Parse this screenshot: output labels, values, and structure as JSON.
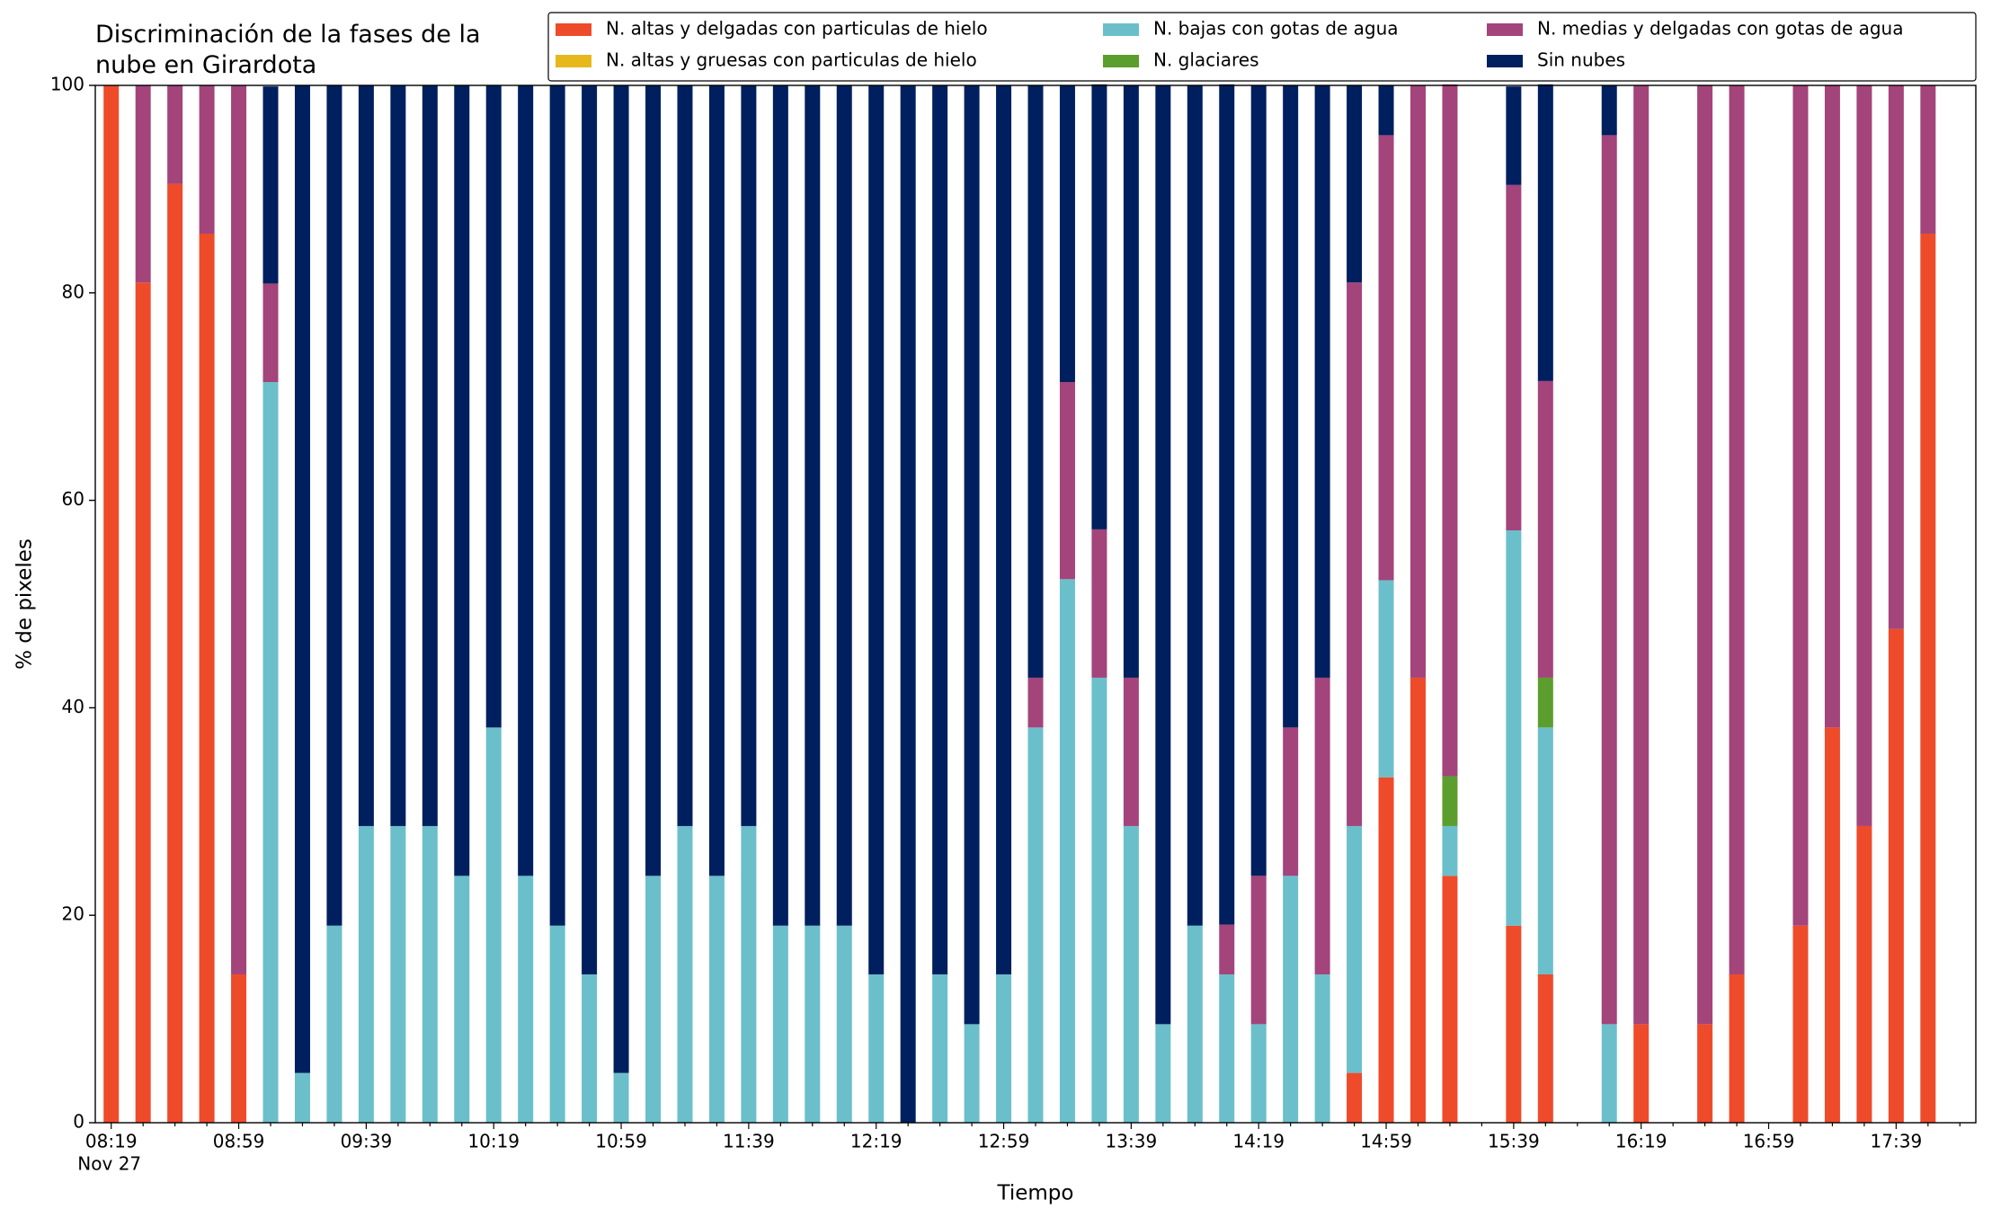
{
  "chart_data": {
    "type": "stacked_bar",
    "title": "Discriminación de la fases de la nube en Girardota",
    "xlabel": "Tiempo",
    "ylabel": "% de pixeles",
    "x_date": "Nov 27",
    "categories": [
      "08:19",
      null,
      null,
      null,
      "08:59",
      null,
      null,
      null,
      "09:39",
      null,
      null,
      null,
      "10:19",
      null,
      null,
      null,
      "10:59",
      null,
      null,
      null,
      "11:39",
      null,
      null,
      null,
      "12:19",
      null,
      null,
      null,
      "12:59",
      null,
      null,
      null,
      "13:39",
      null,
      null,
      null,
      "14:19",
      null,
      null,
      null,
      "14:59",
      null,
      null,
      null,
      "15:39",
      null,
      null,
      null,
      "16:19",
      null,
      null,
      null,
      "16:59",
      null,
      null,
      null,
      "17:39",
      null
    ],
    "ylim": [
      0,
      100
    ],
    "yticks": [
      0,
      20,
      40,
      60,
      80,
      100
    ],
    "legend": "top-right",
    "series": [
      {
        "name": "N. altas y delgadas con particulas de hielo",
        "color": "#ee4b2b",
        "values": [
          100,
          81,
          90.5,
          85.7,
          14.3,
          0,
          0,
          0,
          0,
          0,
          0,
          0,
          0,
          0,
          0,
          0,
          0,
          0,
          0,
          0,
          0,
          0,
          0,
          0,
          0,
          0,
          0,
          0,
          0,
          0,
          0,
          0,
          0,
          0,
          0,
          0,
          0,
          0,
          0,
          4.8,
          33.3,
          42.9,
          23.8,
          null,
          19,
          14.3,
          null,
          0,
          9.5,
          null,
          9.5,
          14.3,
          null,
          19,
          38.1,
          28.6,
          47.6,
          85.7
        ]
      },
      {
        "name": "N. altas y gruesas con particulas de hielo",
        "color": "#e6b81c",
        "values": [
          0,
          0,
          0,
          0,
          0,
          0,
          0,
          0,
          0,
          0,
          0,
          0,
          0,
          0,
          0,
          0,
          0,
          0,
          0,
          0,
          0,
          0,
          0,
          0,
          0,
          0,
          0,
          0,
          0,
          0,
          0,
          0,
          0,
          0,
          0,
          0,
          0,
          0,
          0,
          0,
          0,
          0,
          0,
          null,
          0,
          0,
          null,
          0,
          0,
          null,
          0,
          0,
          null,
          0,
          0,
          0,
          0,
          0
        ]
      },
      {
        "name": "N. bajas con gotas de agua",
        "color": "#6bbfca",
        "values": [
          0,
          0,
          0,
          0,
          0,
          71.4,
          4.8,
          19,
          28.6,
          28.6,
          28.6,
          23.8,
          38.1,
          23.8,
          19,
          14.3,
          4.8,
          23.8,
          28.6,
          23.8,
          28.6,
          19,
          19,
          19,
          14.3,
          0,
          14.3,
          9.5,
          14.3,
          38.1,
          52.4,
          42.9,
          28.6,
          9.5,
          19,
          14.3,
          9.5,
          23.8,
          14.3,
          23.8,
          19,
          0,
          4.8,
          null,
          38.1,
          23.8,
          null,
          9.5,
          0,
          null,
          0,
          0,
          null,
          0,
          0,
          0,
          0,
          0
        ]
      },
      {
        "name": "N. glaciares",
        "color": "#5c9e2e",
        "values": [
          0,
          0,
          0,
          0,
          0,
          0,
          0,
          0,
          0,
          0,
          0,
          0,
          0,
          0,
          0,
          0,
          0,
          0,
          0,
          0,
          0,
          0,
          0,
          0,
          0,
          0,
          0,
          0,
          0,
          0,
          0,
          0,
          0,
          0,
          0,
          0,
          0,
          0,
          0,
          0,
          0,
          0,
          4.8,
          null,
          0,
          4.8,
          null,
          0,
          0,
          null,
          0,
          0,
          null,
          0,
          0,
          0,
          0,
          0
        ]
      },
      {
        "name": "N. medias y delgadas con gotas de agua",
        "color": "#a3447a",
        "values": [
          0,
          19,
          9.5,
          14.3,
          85.7,
          9.5,
          0,
          0,
          0,
          0,
          0,
          0,
          0,
          0,
          0,
          0,
          0,
          0,
          0,
          0,
          0,
          0,
          0,
          0,
          0,
          0,
          0,
          0,
          0,
          4.8,
          19,
          14.3,
          14.3,
          0,
          0,
          4.8,
          14.3,
          14.3,
          28.6,
          52.4,
          42.9,
          57.1,
          66.7,
          null,
          33.3,
          28.6,
          null,
          85.7,
          90.5,
          null,
          90.5,
          85.7,
          null,
          81,
          61.9,
          71.4,
          52.4,
          14.3
        ]
      },
      {
        "name": "Sin nubes",
        "color": "#001f5f",
        "values": [
          0,
          0,
          0,
          0,
          0,
          19,
          95.2,
          81,
          71.4,
          71.4,
          71.4,
          76.2,
          61.9,
          76.2,
          81,
          85.7,
          95.2,
          76.2,
          71.4,
          76.2,
          71.4,
          81,
          81,
          81,
          85.7,
          100,
          85.7,
          90.5,
          85.7,
          57.1,
          28.6,
          42.9,
          57.1,
          90.5,
          81,
          81,
          76.2,
          61.9,
          57.1,
          19,
          4.8,
          0,
          0,
          null,
          9.5,
          28.6,
          null,
          4.8,
          0,
          null,
          0,
          0,
          null,
          0,
          0,
          0,
          0,
          0
        ]
      }
    ]
  }
}
